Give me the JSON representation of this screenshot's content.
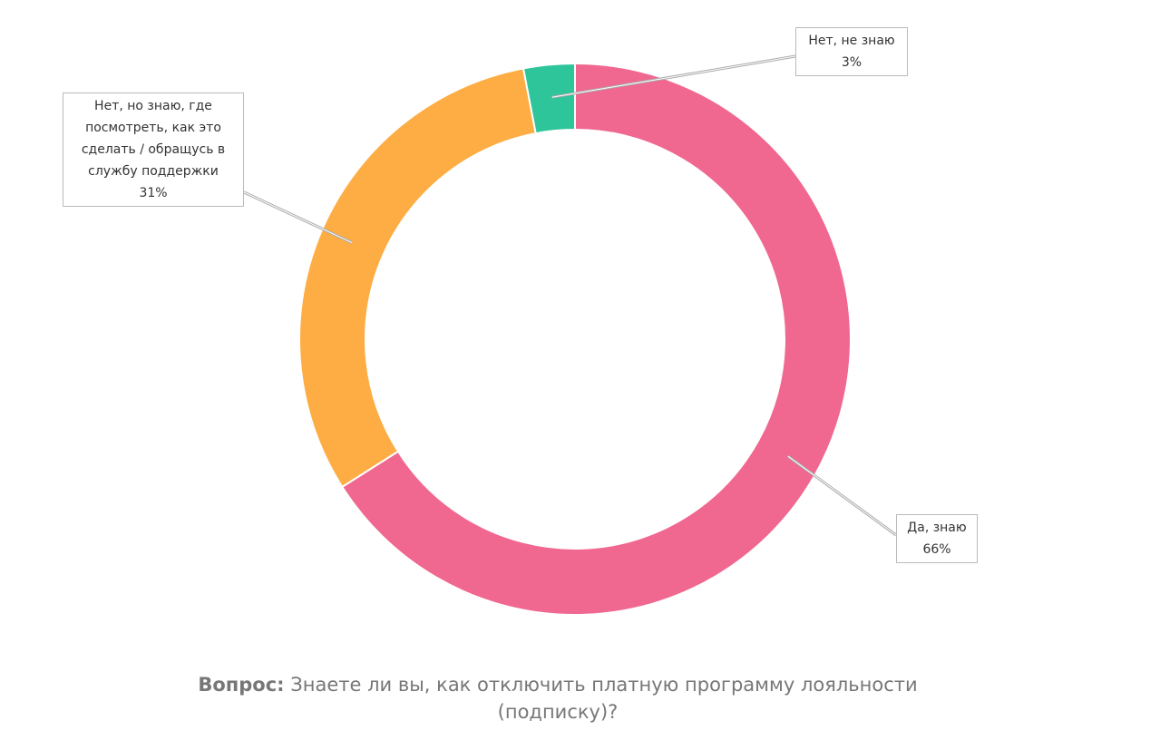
{
  "chart_data": {
    "type": "donut",
    "categories": [
      "Да, знаю",
      "Нет, но знаю, где посмотреть, как это сделать / обращусь в службу поддержки",
      "Нет, не знаю"
    ],
    "values": [
      66,
      31,
      3
    ],
    "value_labels": [
      "66%",
      "31%",
      "3%"
    ],
    "colors": [
      "#f06790",
      "#fdad44",
      "#2ec59a"
    ],
    "caption": {
      "label": "Вопрос:",
      "text": "Знаете ли вы, как отключить платную программу лояльности (подписку)?"
    }
  }
}
